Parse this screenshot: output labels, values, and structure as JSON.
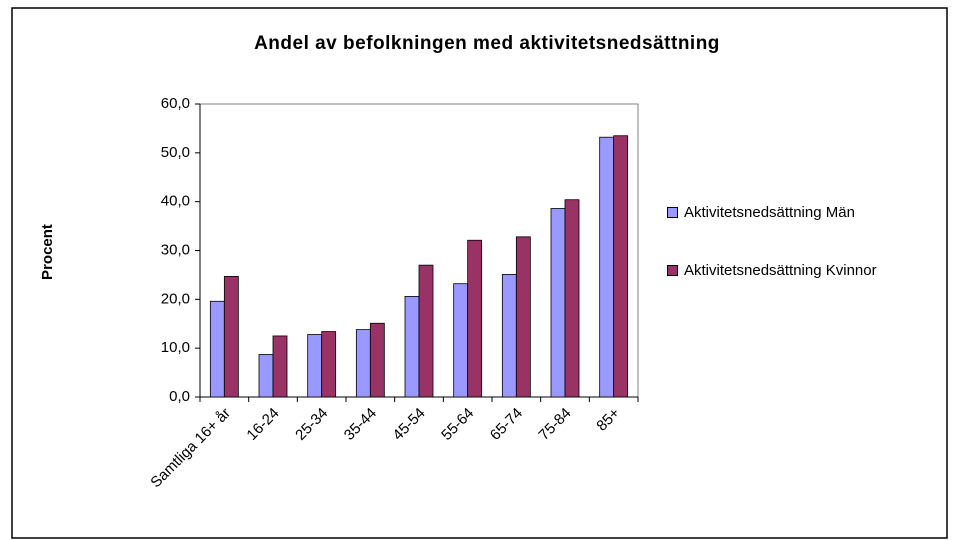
{
  "chart_data": {
    "type": "bar",
    "title": "Andel av befolkningen med aktivitetsnedsättning",
    "ylabel": "Procent",
    "categories": [
      "Samtliga 16+ år",
      "16-24",
      "25-34",
      "35-44",
      "45-54",
      "55-64",
      "65-74",
      "75-84",
      "85+"
    ],
    "series": [
      {
        "name": "Aktivitetsnedsättning Män",
        "color": "#9999ff",
        "values": [
          19.6,
          8.7,
          12.8,
          13.8,
          20.6,
          23.2,
          25.1,
          38.6,
          53.2
        ]
      },
      {
        "name": "Aktivitetsnedsättning Kvinnor",
        "color": "#993366",
        "values": [
          24.7,
          12.5,
          13.4,
          15.1,
          27.0,
          32.1,
          32.8,
          40.4,
          53.5
        ]
      }
    ],
    "ylim": [
      0,
      60
    ],
    "yticks": [
      {
        "value": 0,
        "label": "0,0"
      },
      {
        "value": 10,
        "label": "10,0"
      },
      {
        "value": 20,
        "label": "20,0"
      },
      {
        "value": 30,
        "label": "30,0"
      },
      {
        "value": 40,
        "label": "40,0"
      },
      {
        "value": 50,
        "label": "50,0"
      },
      {
        "value": 60,
        "label": "60,0"
      }
    ],
    "legend": "right"
  }
}
